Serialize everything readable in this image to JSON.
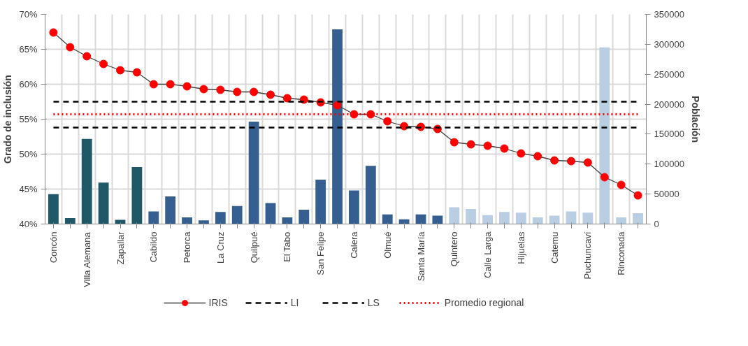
{
  "chart_data": {
    "type": "line",
    "ylabel": "Grado de inclusión",
    "y2label": "Población",
    "categories": [
      "Concón",
      null,
      "Villa Alemana",
      null,
      "Zapallar",
      null,
      "Cabildo",
      null,
      "Petorca",
      null,
      "La Cruz",
      null,
      "Quilpué",
      null,
      "El Tabo",
      null,
      "San Felipe",
      null,
      "Calera",
      null,
      "Olmué",
      null,
      "Santa María",
      null,
      "Quintero",
      null,
      "Calle Larga",
      null,
      "Hijuelas",
      null,
      "Catemu",
      null,
      "Puchuncaví",
      null,
      "Rinconada",
      null
    ],
    "series": [
      {
        "type": "bar",
        "axis": "y2",
        "colors": [
          "#1f5968",
          "#1f5968",
          "#1f5968",
          "#1f5968",
          "#1f5968",
          "#1f5968",
          "#355f91",
          "#355f91",
          "#355f91",
          "#355f91",
          "#355f91",
          "#355f91",
          "#355f91",
          "#355f91",
          "#355f91",
          "#355f91",
          "#355f91",
          "#355f91",
          "#355f91",
          "#355f91",
          "#355f91",
          "#355f91",
          "#355f91",
          "#355f91",
          "#b9cde3",
          "#b9cde3",
          "#b9cde3",
          "#b9cde3",
          "#b9cde3",
          "#b9cde3",
          "#b9cde3",
          "#b9cde3",
          "#b9cde3",
          "#b9cde3",
          "#b9cde3",
          "#b9cde3"
        ],
        "values": [
          50000,
          10000,
          142000,
          69000,
          7000,
          95000,
          21000,
          46000,
          11000,
          6000,
          20000,
          30000,
          171000,
          35000,
          11000,
          24000,
          74000,
          325000,
          56000,
          97000,
          16000,
          8000,
          16000,
          14000,
          28000,
          25000,
          15000,
          20000,
          19000,
          11000,
          14000,
          21000,
          19000,
          295000,
          11000,
          18000
        ]
      },
      {
        "name": "IRIS",
        "color": "#ff0000",
        "marker": "circle",
        "values": [
          67.4,
          65.3,
          64.0,
          62.9,
          62.0,
          61.7,
          60.0,
          60.0,
          59.7,
          59.3,
          59.2,
          58.9,
          58.9,
          58.5,
          58.0,
          57.8,
          57.4,
          57.0,
          55.7,
          55.7,
          54.7,
          54.0,
          53.9,
          53.6,
          51.7,
          51.4,
          51.2,
          50.8,
          50.1,
          49.7,
          49.1,
          49.0,
          48.8,
          46.7,
          45.6,
          44.1
        ]
      }
    ],
    "ref_lines": [
      {
        "axis": "y",
        "value": 53.8,
        "label": "LI",
        "color": "#000000",
        "line_style": "dashed"
      },
      {
        "axis": "y",
        "value": 57.5,
        "label": "LS",
        "color": "#000000",
        "line_style": "dashed"
      },
      {
        "axis": "y",
        "value": 55.7,
        "label": "Promedio regional",
        "color": "#ff0000",
        "line_style": "dotted"
      }
    ],
    "ylim": [
      40,
      70
    ],
    "yticks": [
      {
        "value": 40,
        "label": "40%"
      },
      {
        "value": 45,
        "label": "45%"
      },
      {
        "value": 50,
        "label": "50%"
      },
      {
        "value": 55,
        "label": "55%"
      },
      {
        "value": 60,
        "label": "60%"
      },
      {
        "value": 65,
        "label": "65%"
      },
      {
        "value": 70,
        "label": "70%"
      }
    ],
    "y2lim": [
      0,
      350000
    ],
    "y2ticks": [
      0,
      50000,
      100000,
      150000,
      200000,
      250000,
      300000,
      350000
    ],
    "grid": true,
    "legend": "bottom"
  }
}
